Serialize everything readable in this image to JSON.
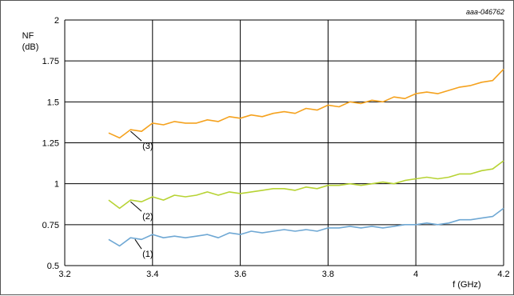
{
  "chart_data": {
    "type": "line",
    "figure_code": "aaa-046762",
    "ylabel_line1": "NF",
    "ylabel_line2": "(dB)",
    "xlabel": "f (GHz)",
    "xlim": [
      3.2,
      4.2
    ],
    "ylim": [
      0.5,
      2.0
    ],
    "xticks": [
      "3.2",
      "3.4",
      "3.6",
      "3.8",
      "4",
      "4.2"
    ],
    "yticks": [
      "0.5",
      "0.75",
      "1",
      "1.25",
      "1.5",
      "1.75",
      "2"
    ],
    "xtick_values": [
      3.2,
      3.4,
      3.6,
      3.8,
      4.0,
      4.2
    ],
    "ytick_values": [
      0.5,
      0.75,
      1.0,
      1.25,
      1.5,
      1.75,
      2.0
    ],
    "grid": true,
    "series": [
      {
        "label": "(1)",
        "color": "#6fa8d4",
        "x": [
          3.3,
          3.325,
          3.35,
          3.375,
          3.4,
          3.425,
          3.45,
          3.475,
          3.5,
          3.525,
          3.55,
          3.575,
          3.6,
          3.625,
          3.65,
          3.675,
          3.7,
          3.725,
          3.75,
          3.775,
          3.8,
          3.825,
          3.85,
          3.875,
          3.9,
          3.925,
          3.95,
          3.975,
          4.0,
          4.025,
          4.05,
          4.075,
          4.1,
          4.125,
          4.15,
          4.175,
          4.2
        ],
        "y": [
          0.66,
          0.62,
          0.67,
          0.66,
          0.69,
          0.67,
          0.68,
          0.67,
          0.68,
          0.69,
          0.67,
          0.7,
          0.69,
          0.71,
          0.7,
          0.71,
          0.72,
          0.71,
          0.72,
          0.71,
          0.73,
          0.73,
          0.74,
          0.73,
          0.74,
          0.73,
          0.74,
          0.75,
          0.75,
          0.76,
          0.75,
          0.76,
          0.78,
          0.78,
          0.79,
          0.8,
          0.85
        ]
      },
      {
        "label": "(2)",
        "color": "#b7d334",
        "x": [
          3.3,
          3.325,
          3.35,
          3.375,
          3.4,
          3.425,
          3.45,
          3.475,
          3.5,
          3.525,
          3.55,
          3.575,
          3.6,
          3.625,
          3.65,
          3.675,
          3.7,
          3.725,
          3.75,
          3.775,
          3.8,
          3.825,
          3.85,
          3.875,
          3.9,
          3.925,
          3.95,
          3.975,
          4.0,
          4.025,
          4.05,
          4.075,
          4.1,
          4.125,
          4.15,
          4.175,
          4.2
        ],
        "y": [
          0.9,
          0.85,
          0.9,
          0.89,
          0.92,
          0.9,
          0.93,
          0.92,
          0.93,
          0.95,
          0.93,
          0.95,
          0.94,
          0.95,
          0.96,
          0.97,
          0.97,
          0.96,
          0.98,
          0.97,
          0.99,
          0.99,
          1.0,
          0.99,
          1.0,
          1.01,
          1.0,
          1.02,
          1.03,
          1.04,
          1.03,
          1.04,
          1.06,
          1.06,
          1.08,
          1.09,
          1.14
        ]
      },
      {
        "label": "(3)",
        "color": "#f5a21e",
        "x": [
          3.3,
          3.325,
          3.35,
          3.375,
          3.4,
          3.425,
          3.45,
          3.475,
          3.5,
          3.525,
          3.55,
          3.575,
          3.6,
          3.625,
          3.65,
          3.675,
          3.7,
          3.725,
          3.75,
          3.775,
          3.8,
          3.825,
          3.85,
          3.875,
          3.9,
          3.925,
          3.95,
          3.975,
          4.0,
          4.025,
          4.05,
          4.075,
          4.1,
          4.125,
          4.15,
          4.175,
          4.2
        ],
        "y": [
          1.31,
          1.28,
          1.33,
          1.32,
          1.37,
          1.36,
          1.38,
          1.37,
          1.37,
          1.39,
          1.38,
          1.41,
          1.4,
          1.42,
          1.41,
          1.43,
          1.44,
          1.43,
          1.46,
          1.45,
          1.48,
          1.47,
          1.5,
          1.49,
          1.51,
          1.5,
          1.53,
          1.52,
          1.55,
          1.56,
          1.55,
          1.57,
          1.59,
          1.6,
          1.62,
          1.63,
          1.7
        ]
      }
    ],
    "callouts": [
      {
        "text": "(1)",
        "series": 0,
        "from_x": 3.375,
        "to_x": 3.36
      },
      {
        "text": "(2)",
        "series": 1,
        "from_x": 3.375,
        "to_x": 3.35
      },
      {
        "text": "(3)",
        "series": 2,
        "from_x": 3.375,
        "to_x": 3.35
      }
    ]
  }
}
